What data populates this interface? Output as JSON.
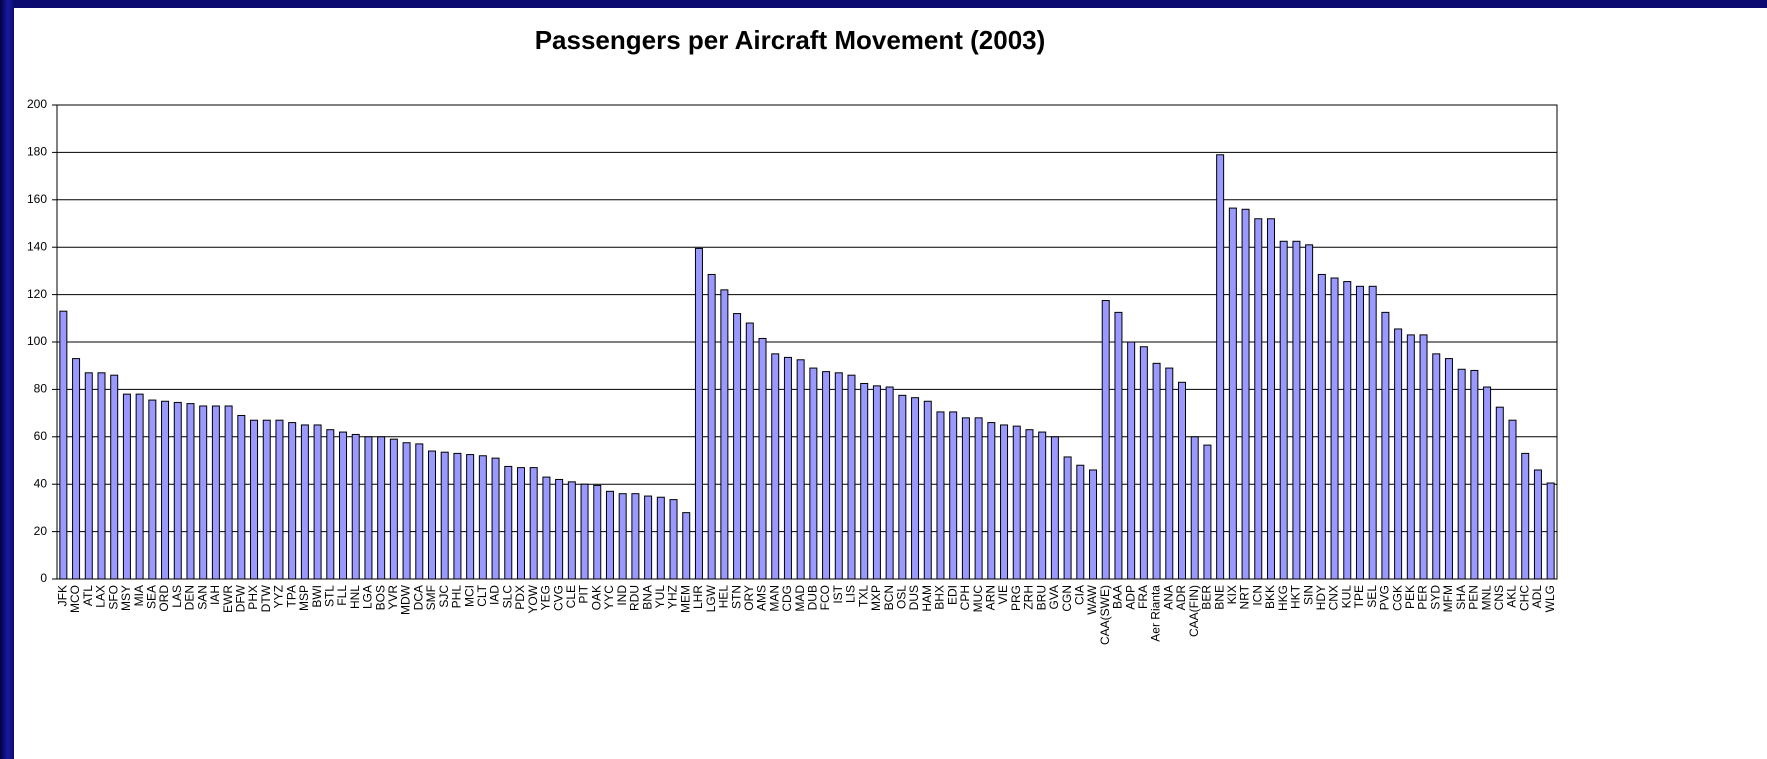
{
  "chart_data": {
    "type": "bar",
    "title": "Passengers per Aircraft Movement (2003)",
    "categories": [
      "JFK",
      "MCO",
      "ATL",
      "LAX",
      "SFO",
      "MSY",
      "MIA",
      "SEA",
      "ORD",
      "LAS",
      "DEN",
      "SAN",
      "IAH",
      "EWR",
      "DFW",
      "PHX",
      "DTW",
      "YYZ",
      "TPA",
      "MSP",
      "BWI",
      "STL",
      "FLL",
      "HNL",
      "LGA",
      "BOS",
      "YVR",
      "MDW",
      "DCA",
      "SMF",
      "SJC",
      "PHL",
      "MCI",
      "CLT",
      "IAD",
      "SLC",
      "PDX",
      "YOW",
      "YEG",
      "CVG",
      "CLE",
      "PIT",
      "OAK",
      "YYC",
      "IND",
      "RDU",
      "BNA",
      "YUL",
      "YHZ",
      "MEM",
      "LHR",
      "LGW",
      "HEL",
      "STN",
      "ORY",
      "AMS",
      "MAN",
      "CDG",
      "MAD",
      "DUB",
      "FCO",
      "IST",
      "LIS",
      "TXL",
      "MXP",
      "BCN",
      "OSL",
      "DUS",
      "HAM",
      "BHX",
      "EDI",
      "CPH",
      "MUC",
      "ARN",
      "VIE",
      "PRG",
      "ZRH",
      "BRU",
      "GVA",
      "CGN",
      "CIA",
      "WAW",
      "CAA(SWE)",
      "BAA",
      "ADP",
      "FRA",
      "Aer Rianta",
      "ANA",
      "ADR",
      "CAA(FIN)",
      "BER",
      "BNE",
      "KIX",
      "NRT",
      "ICN",
      "BKK",
      "HKG",
      "HKT",
      "SIN",
      "HDY",
      "CNX",
      "KUL",
      "TPE",
      "SEL",
      "PVG",
      "CGK",
      "PEK",
      "PER",
      "SYD",
      "MFM",
      "SHA",
      "PEN",
      "MNL",
      "CNS",
      "AKL",
      "CHC",
      "ADL",
      "WLG"
    ],
    "values": [
      113,
      93,
      87,
      87,
      86,
      78,
      78,
      75.5,
      75,
      74.5,
      74,
      73,
      73,
      73,
      69,
      67,
      67,
      67,
      66,
      65,
      65,
      63,
      62,
      61,
      60,
      60,
      59,
      57.5,
      57,
      54,
      53.5,
      53,
      52.5,
      52,
      51,
      47.5,
      47,
      47,
      43,
      42,
      41,
      40,
      39.5,
      37,
      36,
      36,
      35,
      34.5,
      33.5,
      28,
      139.5,
      128.5,
      122,
      112,
      108,
      101.5,
      95,
      93.5,
      92.5,
      89,
      87.5,
      87,
      86,
      82.5,
      81.5,
      81,
      77.5,
      76.5,
      75,
      70.5,
      70.5,
      68,
      68,
      66,
      65,
      64.5,
      63,
      62,
      60,
      51.5,
      48,
      46,
      117.5,
      112.5,
      100,
      98,
      91,
      89,
      83,
      60,
      56.5,
      179,
      156.5,
      156,
      152,
      152,
      142.5,
      142.5,
      141,
      128.5,
      127,
      125.5,
      123.5,
      123.5,
      112.5,
      105.5,
      103,
      103,
      95,
      93,
      88.5,
      88,
      81,
      72.5,
      67,
      53,
      46,
      40.5
    ],
    "color": "#9999ff",
    "ylim": [
      0,
      200
    ],
    "yticks": [
      0,
      20,
      40,
      60,
      80,
      100,
      120,
      140,
      160,
      180,
      200
    ],
    "grid": true
  }
}
